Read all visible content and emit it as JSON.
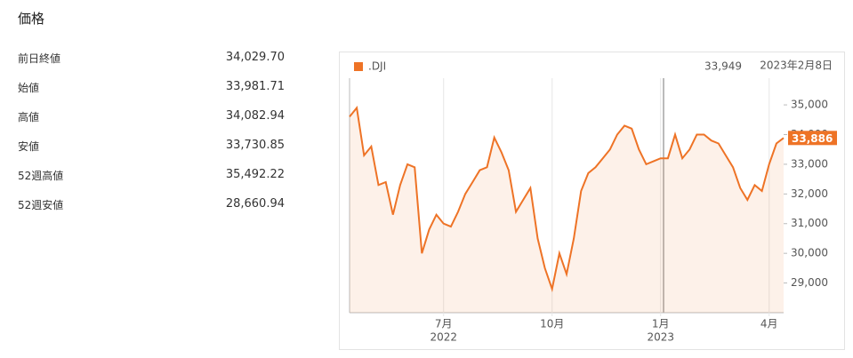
{
  "header": {
    "title": "価格"
  },
  "stats": [
    {
      "label": "前日終値",
      "value": "34,029.70"
    },
    {
      "label": "始値",
      "value": "33,981.71"
    },
    {
      "label": "高値",
      "value": "34,082.94"
    },
    {
      "label": "安値",
      "value": "33,730.85"
    },
    {
      "label": "52週高値",
      "value": "35,492.22"
    },
    {
      "label": "52週安値",
      "value": "28,660.94"
    }
  ],
  "chart_data": {
    "type": "line",
    "categories": [
      null,
      null,
      null,
      null,
      null,
      null,
      null,
      null,
      null,
      null,
      null,
      null,
      null,
      "7月",
      null,
      null,
      null,
      null,
      null,
      null,
      null,
      null,
      null,
      null,
      null,
      null,
      null,
      null,
      "10月",
      null,
      null,
      null,
      null,
      null,
      null,
      null,
      null,
      null,
      null,
      null,
      null,
      null,
      null,
      "1月",
      null,
      null,
      null,
      null,
      null,
      null,
      null,
      null,
      null,
      null,
      null,
      null,
      null,
      null,
      "4月",
      null,
      null
    ],
    "category_years": [
      null,
      null,
      null,
      null,
      null,
      null,
      null,
      null,
      null,
      null,
      null,
      null,
      null,
      "2022",
      null,
      null,
      null,
      null,
      null,
      null,
      null,
      null,
      null,
      null,
      null,
      null,
      null,
      null,
      null,
      null,
      null,
      null,
      null,
      null,
      null,
      null,
      null,
      null,
      null,
      null,
      null,
      null,
      null,
      "2023",
      null,
      null,
      null,
      null,
      null,
      null,
      null,
      null,
      null,
      null,
      null,
      null,
      null,
      null,
      null,
      null,
      null
    ],
    "series": [
      {
        "name": ".DJI",
        "color": "#ee7326",
        "values": [
          34600,
          34900,
          33300,
          33600,
          32300,
          32400,
          31300,
          32300,
          33000,
          32900,
          30000,
          30800,
          31300,
          31000,
          30900,
          31400,
          32000,
          32400,
          32800,
          32900,
          33900,
          33400,
          32800,
          31400,
          31800,
          32200,
          30500,
          29500,
          28800,
          30000,
          29300,
          30500,
          32100,
          32700,
          32900,
          33200,
          33500,
          34000,
          34300,
          34200,
          33500,
          33000,
          33100,
          33200,
          33200,
          34000,
          33200,
          33500,
          34000,
          34000,
          33800,
          33700,
          33300,
          32900,
          32200,
          31800,
          32300,
          32100,
          33000,
          33700,
          33886
        ]
      }
    ],
    "ylim": [
      28000,
      35900
    ],
    "yticks": [
      {
        "value": 29000,
        "label": "29,000"
      },
      {
        "value": 30000,
        "label": "30,000"
      },
      {
        "value": 31000,
        "label": "31,000"
      },
      {
        "value": 32000,
        "label": "32,000"
      },
      {
        "value": 33000,
        "label": "33,000"
      },
      {
        "value": 34000,
        "label": "34,000"
      },
      {
        "value": 35000,
        "label": "35,000"
      }
    ],
    "last_value": {
      "value": 33886,
      "label": "33,886"
    },
    "crosshair_value": {
      "value": 33949,
      "label": "33,949"
    },
    "crosshair_date": "2023年2月8日"
  }
}
